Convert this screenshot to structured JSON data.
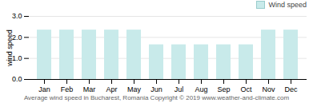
{
  "chart_data": {
    "type": "bar",
    "categories": [
      "Jan",
      "Feb",
      "Mar",
      "Apr",
      "May",
      "Jun",
      "Jul",
      "Aug",
      "Sep",
      "Oct",
      "Nov",
      "Dec"
    ],
    "series": [
      {
        "name": "Wind speed",
        "color": "#c8eaea",
        "values": [
          2.35,
          2.35,
          2.35,
          2.35,
          2.35,
          1.65,
          1.65,
          1.65,
          1.65,
          1.65,
          2.35,
          2.35
        ]
      }
    ],
    "ylabel": "wind speed",
    "ylim": [
      0,
      3
    ],
    "yticks": [
      0,
      1,
      2,
      3
    ],
    "grid": true,
    "legend": "upper right",
    "annotations": [
      "Average wind speed in Bucharest, Romania   Copyright © 2019 www.weather-and-climate.com"
    ]
  }
}
